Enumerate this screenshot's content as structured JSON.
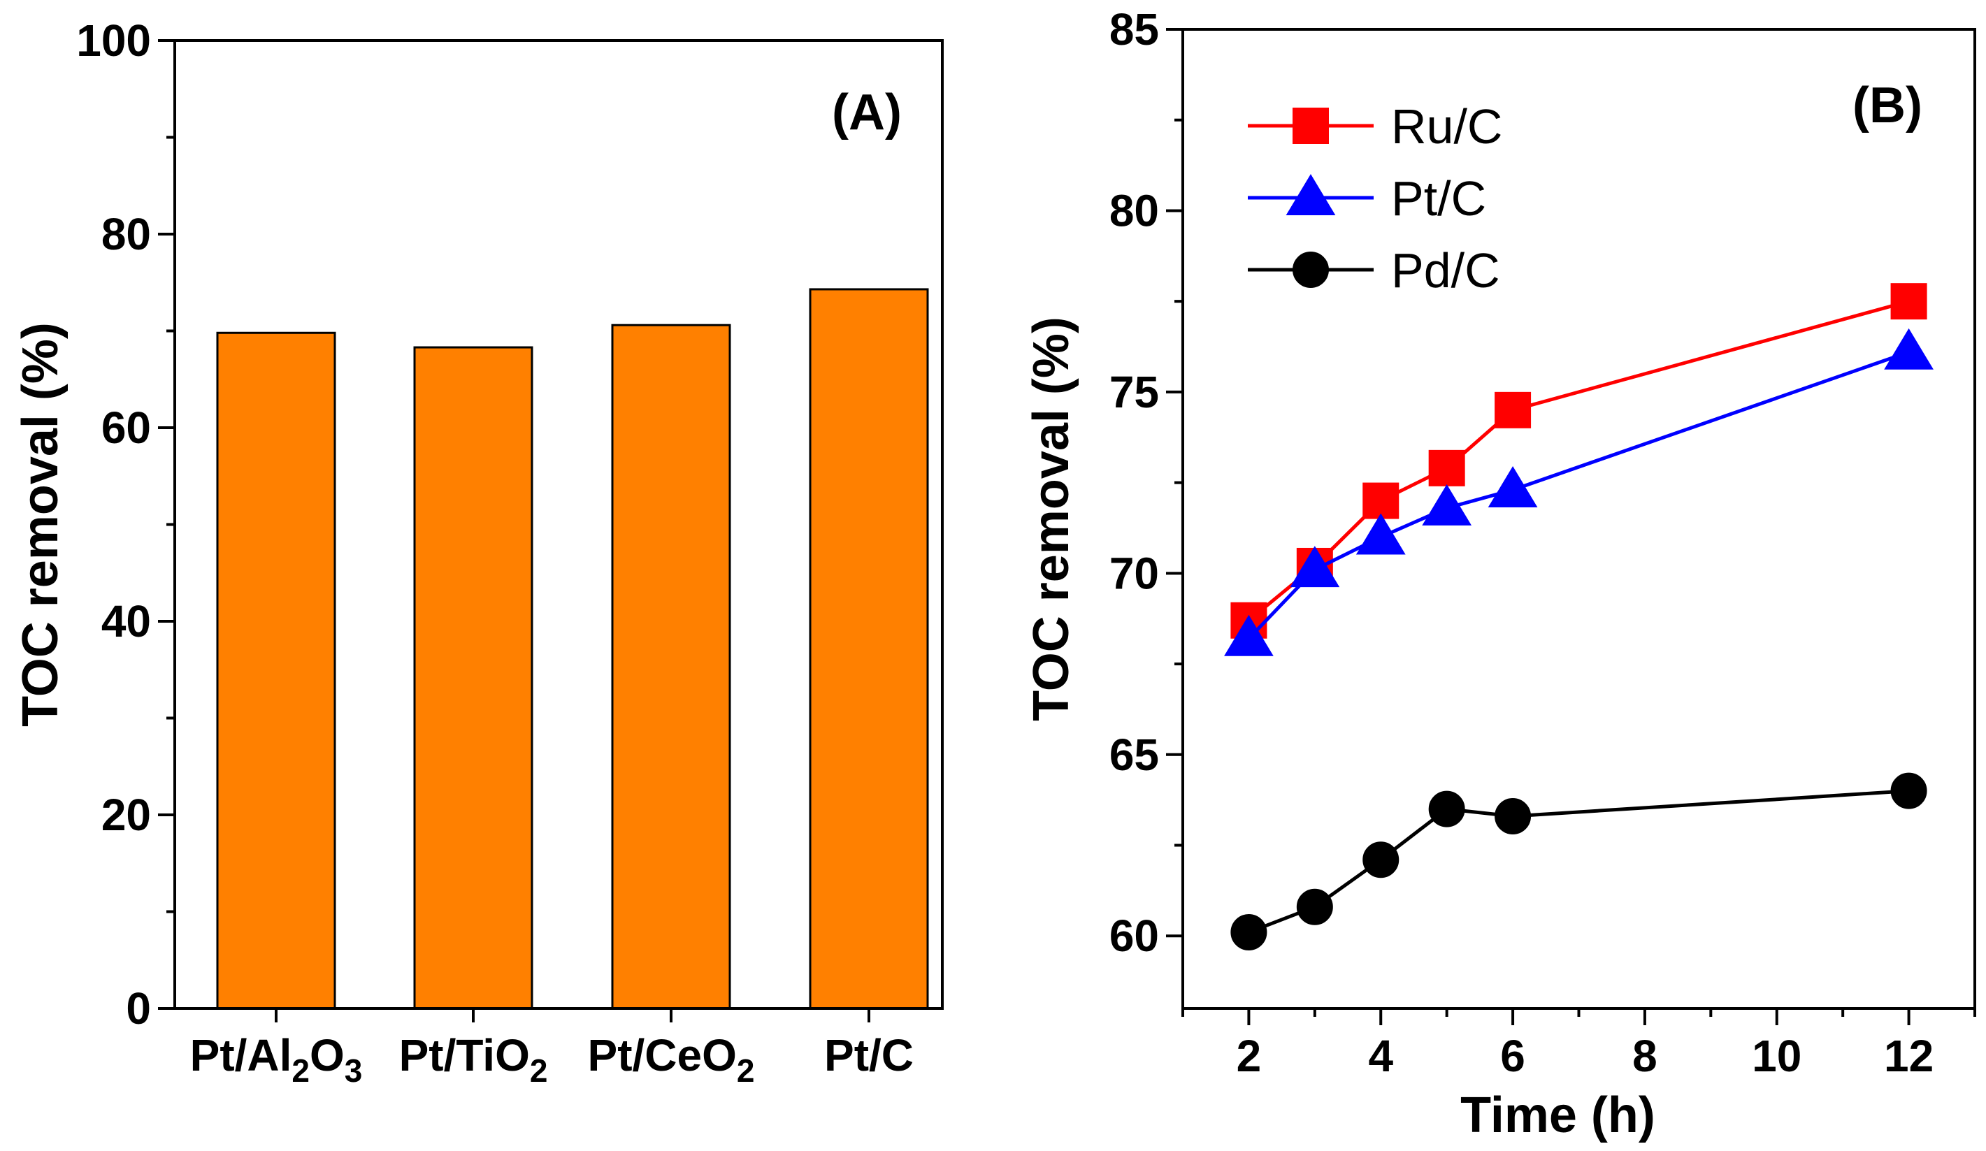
{
  "chart_data": [
    {
      "type": "bar",
      "panel_label": "(A)",
      "categories": [
        "Pt/Al2O3",
        "Pt/TiO2",
        "Pt/CeO2",
        "Pt/C"
      ],
      "category_parts": [
        [
          {
            "t": "Pt/Al"
          },
          {
            "t": "2",
            "sub": true
          },
          {
            "t": "O"
          },
          {
            "t": "3",
            "sub": true
          }
        ],
        [
          {
            "t": "Pt/TiO"
          },
          {
            "t": "2",
            "sub": true
          }
        ],
        [
          {
            "t": "Pt/CeO"
          },
          {
            "t": "2",
            "sub": true
          }
        ],
        [
          {
            "t": "Pt/C"
          }
        ]
      ],
      "values": [
        69.8,
        68.3,
        70.6,
        74.3
      ],
      "xlabel": "",
      "ylabel": "TOC removal (%)",
      "ylim": [
        0,
        100
      ],
      "yticks": [
        0,
        20,
        40,
        60,
        80,
        100
      ],
      "bar_color": "#ff8000"
    },
    {
      "type": "line",
      "panel_label": "(B)",
      "xlabel": "Time (h)",
      "ylabel": "TOC removal (%)",
      "xlim": [
        1,
        13
      ],
      "ylim": [
        58,
        85
      ],
      "xticks": [
        2,
        4,
        6,
        8,
        10,
        12
      ],
      "yticks": [
        60,
        65,
        70,
        75,
        80,
        85
      ],
      "legend_position": "top-left",
      "series": [
        {
          "name": "Ru/C",
          "marker": "square",
          "color": "#ff0000",
          "x": [
            2,
            3,
            4,
            5,
            6,
            12
          ],
          "y": [
            68.7,
            70.2,
            72.0,
            72.9,
            74.5,
            77.5
          ]
        },
        {
          "name": "Pt/C",
          "marker": "triangle",
          "color": "#0000ff",
          "x": [
            2,
            3,
            4,
            5,
            6,
            12
          ],
          "y": [
            68.2,
            70.1,
            71.0,
            71.8,
            72.3,
            76.1
          ]
        },
        {
          "name": "Pd/C",
          "marker": "circle",
          "color": "#000000",
          "x": [
            2,
            3,
            4,
            5,
            6,
            12
          ],
          "y": [
            60.1,
            60.8,
            62.1,
            63.5,
            63.3,
            64.0
          ]
        }
      ]
    }
  ]
}
